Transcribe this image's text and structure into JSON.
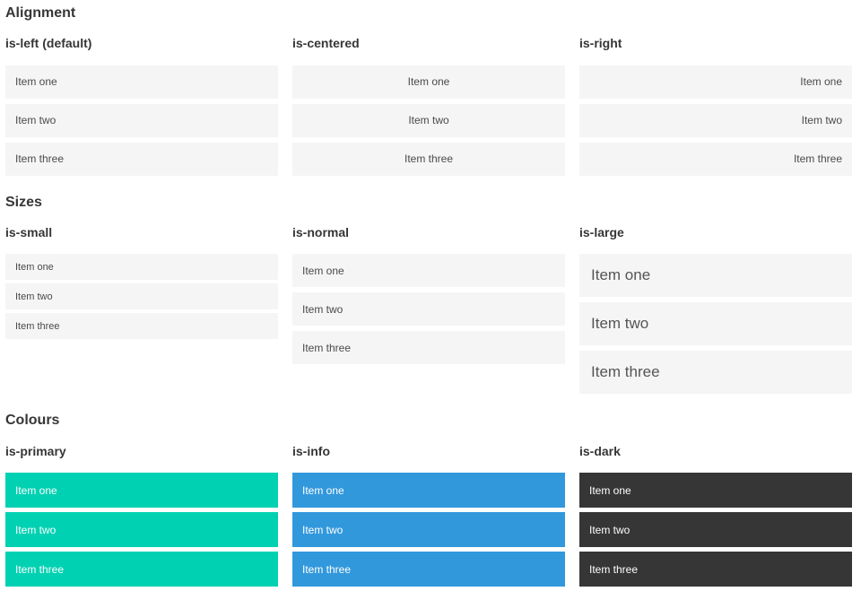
{
  "colors": {
    "primary": "#00d1b2",
    "info": "#3298dc",
    "dark": "#363636",
    "item_background": "#f5f5f5",
    "item_text": "#4a4a4a",
    "heading_text": "#363636"
  },
  "sections": [
    {
      "title": "Alignment",
      "columns": [
        {
          "subtitle": "is-left (default)",
          "variant": "left",
          "items": [
            "Item one",
            "Item two",
            "Item three"
          ]
        },
        {
          "subtitle": "is-centered",
          "variant": "centered",
          "items": [
            "Item one",
            "Item two",
            "Item three"
          ]
        },
        {
          "subtitle": "is-right",
          "variant": "right",
          "items": [
            "Item one",
            "Item two",
            "Item three"
          ]
        }
      ]
    },
    {
      "title": "Sizes",
      "columns": [
        {
          "subtitle": "is-small",
          "variant": "small",
          "items": [
            "Item one",
            "Item two",
            "Item three"
          ]
        },
        {
          "subtitle": "is-normal",
          "variant": "normal",
          "items": [
            "Item one",
            "Item two",
            "Item three"
          ]
        },
        {
          "subtitle": "is-large",
          "variant": "large",
          "items": [
            "Item one",
            "Item two",
            "Item three"
          ]
        }
      ]
    },
    {
      "title": "Colours",
      "columns": [
        {
          "subtitle": "is-primary",
          "variant": "primary",
          "items": [
            "Item one",
            "Item two",
            "Item three"
          ]
        },
        {
          "subtitle": "is-info",
          "variant": "info",
          "items": [
            "Item one",
            "Item two",
            "Item three"
          ]
        },
        {
          "subtitle": "is-dark",
          "variant": "dark",
          "items": [
            "Item one",
            "Item two",
            "Item three"
          ]
        }
      ]
    }
  ]
}
